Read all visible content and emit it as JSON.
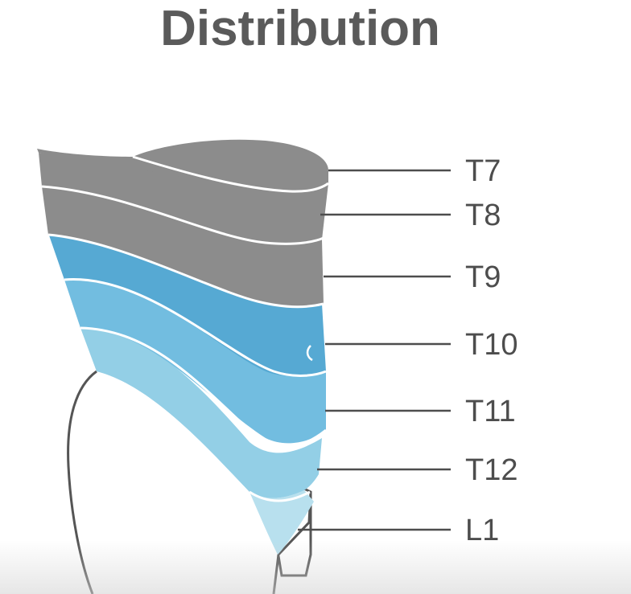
{
  "title": "Distribution",
  "levels": [
    {
      "label": "T7",
      "color": "#8c8c8c"
    },
    {
      "label": "T8",
      "color": "#8c8c8c"
    },
    {
      "label": "T9",
      "color": "#8c8c8c"
    },
    {
      "label": "T10",
      "color": "#56a9d3"
    },
    {
      "label": "T11",
      "color": "#72bde0"
    },
    {
      "label": "T12",
      "color": "#93cfe6"
    },
    {
      "label": "L1",
      "color": "#b8e0ee"
    }
  ]
}
